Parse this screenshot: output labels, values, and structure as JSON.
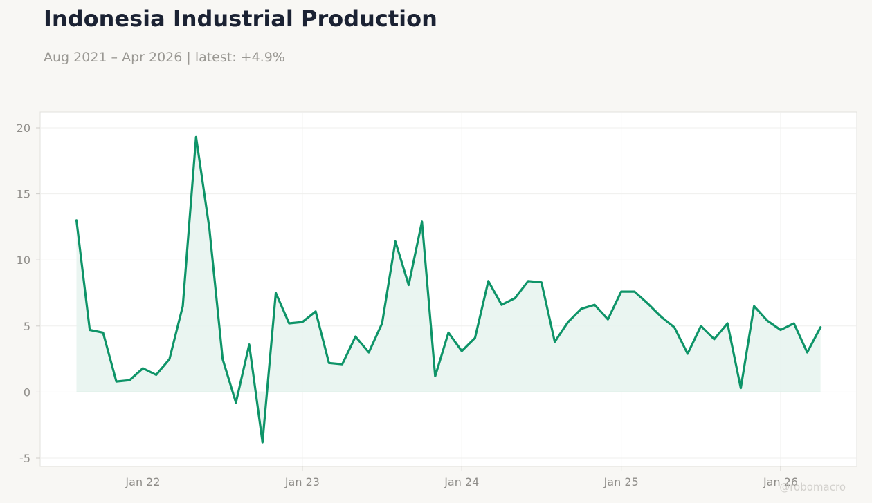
{
  "title": "Indonesia Industrial Production",
  "subtitle": "Aug 2021 – Apr 2026 | latest: +4.9%",
  "watermark": "@robomacro",
  "colors": {
    "line": "#0e9468",
    "fill": "#e6f3ee",
    "background": "#f8f7f4",
    "plot_background": "#ffffff",
    "grid": "#efefed",
    "tick_text": "#8f8d89",
    "title": "#1b2233"
  },
  "chart_data": {
    "type": "area",
    "x_start": "2021-08",
    "x_frequency": "monthly",
    "x_ticks": [
      "Jan 22",
      "Jan 23",
      "Jan 24",
      "Jan 25",
      "Jan 26"
    ],
    "x_tick_dates": [
      "2022-01",
      "2023-01",
      "2024-01",
      "2025-01",
      "2026-01"
    ],
    "y_ticks": [
      20,
      15,
      10,
      5,
      0,
      -5
    ],
    "ylim": [
      -5.6,
      21.2
    ],
    "grid": true,
    "fill_baseline": 0,
    "series": [
      {
        "dates": [
          "2021-08",
          "2021-09",
          "2021-10",
          "2021-11",
          "2021-12",
          "2022-01",
          "2022-02",
          "2022-03",
          "2022-04",
          "2022-05",
          "2022-06",
          "2022-07",
          "2022-08",
          "2022-09",
          "2022-10",
          "2022-11",
          "2022-12",
          "2023-01",
          "2023-02",
          "2023-03",
          "2023-04",
          "2023-05",
          "2023-06",
          "2023-07",
          "2023-08",
          "2023-09",
          "2023-10",
          "2023-11",
          "2023-12",
          "2024-01",
          "2024-02",
          "2024-03",
          "2024-04",
          "2024-05",
          "2024-06",
          "2024-07",
          "2024-08",
          "2024-09",
          "2024-10",
          "2024-11",
          "2024-12",
          "2025-01",
          "2025-02",
          "2025-03",
          "2025-04",
          "2025-05",
          "2025-06",
          "2025-07",
          "2025-08",
          "2025-09",
          "2025-10",
          "2025-11",
          "2025-12",
          "2026-01",
          "2026-02",
          "2026-03",
          "2026-04"
        ],
        "values": [
          13.0,
          4.7,
          4.5,
          0.8,
          0.9,
          1.8,
          1.3,
          2.5,
          6.5,
          19.3,
          12.4,
          2.5,
          -0.8,
          3.6,
          -3.8,
          7.5,
          5.2,
          5.3,
          6.1,
          2.2,
          2.1,
          4.2,
          3.0,
          5.2,
          11.4,
          8.1,
          12.9,
          1.2,
          4.5,
          3.1,
          4.1,
          8.4,
          6.6,
          7.1,
          8.4,
          8.3,
          3.8,
          5.3,
          6.3,
          6.6,
          5.5,
          7.6,
          7.6,
          6.7,
          5.7,
          4.9,
          2.9,
          5.0,
          4.0,
          5.2,
          0.3,
          6.5,
          5.4,
          4.7,
          5.2,
          3.0,
          4.9
        ]
      }
    ]
  }
}
